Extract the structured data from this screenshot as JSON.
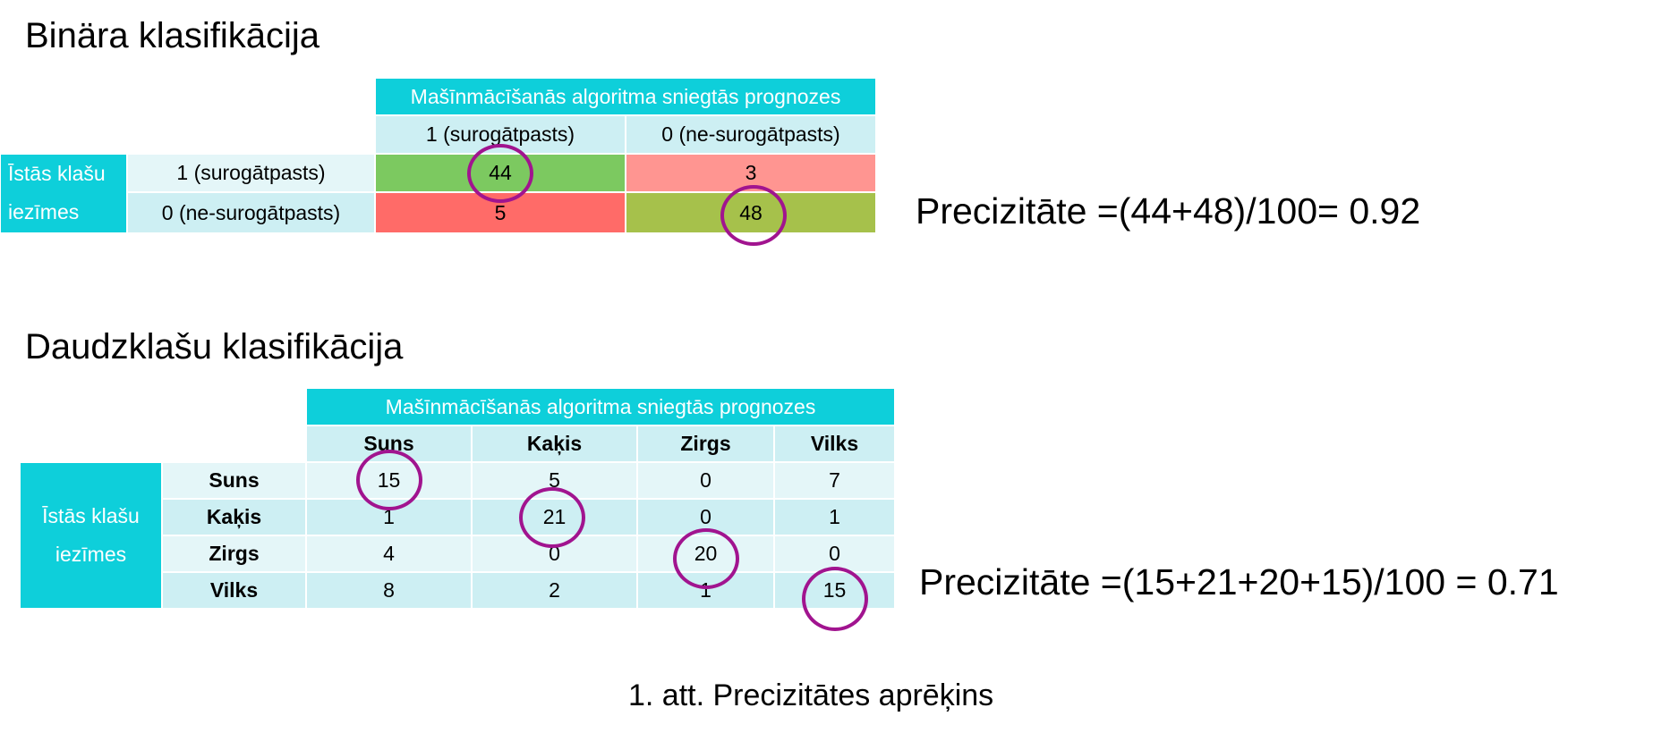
{
  "binary": {
    "title": "Binära klasifikācija",
    "header": "Mašīnmācīšanās algoritma sniegtās prognozes",
    "columns": [
      "1 (surogātpasts)",
      "0 (ne-surogātpasts)"
    ],
    "side_label_line1": "Īstās klašu",
    "side_label_line2": "iezīmes",
    "rows": [
      {
        "label": "1 (surogātpasts)",
        "values": [
          "44",
          "3"
        ]
      },
      {
        "label": "0 (ne-surogātpasts)",
        "values": [
          "5",
          "48"
        ]
      }
    ],
    "formula": "Precizitāte =(44+48)/100= 0.92"
  },
  "multi": {
    "title": "Daudzklašu klasifikācija",
    "header": "Mašīnmācīšanās algoritma sniegtās prognozes",
    "columns": [
      "Suns",
      "Kaķis",
      "Zirgs",
      "Vilks"
    ],
    "side_label_line1": "Īstās klašu",
    "side_label_line2": "iezīmes",
    "rows": [
      {
        "label": "Suns",
        "values": [
          "15",
          "5",
          "0",
          "7"
        ]
      },
      {
        "label": "Kaķis",
        "values": [
          "1",
          "21",
          "0",
          "1"
        ]
      },
      {
        "label": "Zirgs",
        "values": [
          "4",
          "0",
          "20",
          "0"
        ]
      },
      {
        "label": "Vilks",
        "values": [
          "8",
          "2",
          "1",
          "15"
        ]
      }
    ],
    "formula": "Precizitāte =(15+21+20+15)/100 = 0.71"
  },
  "caption": "1. att. Precizitātes aprēķins",
  "colors": {
    "header": "#0ecfda",
    "light": "#cdeff3",
    "true_positive": "#7cc960",
    "false_negative": "#ff9591",
    "false_positive": "#ff6b68",
    "true_negative": "#a6c14b",
    "circle": "#a1148f"
  }
}
